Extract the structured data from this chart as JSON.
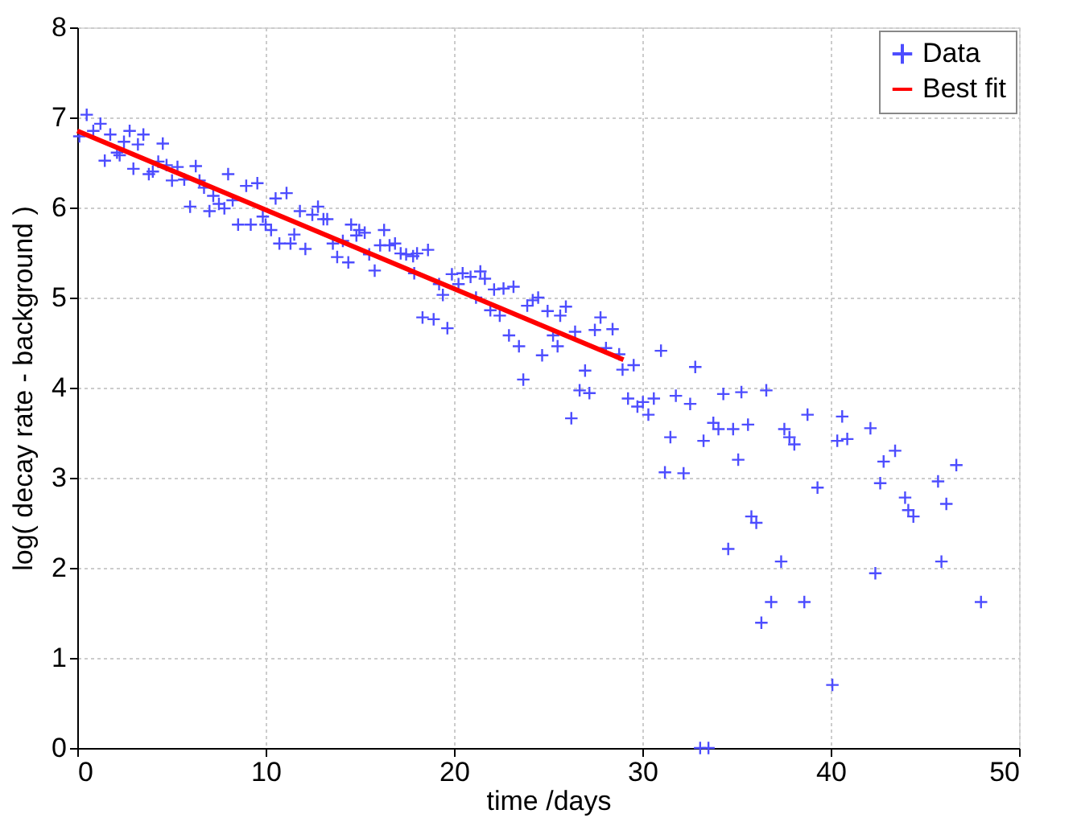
{
  "chart_data": {
    "type": "scatter",
    "xlabel": "time /days",
    "ylabel": "log( decay rate - background )",
    "xlim": [
      0,
      50
    ],
    "xticks": [
      0,
      10,
      20,
      30,
      40,
      50
    ],
    "ylim": [
      0,
      8
    ],
    "yticks": [
      0,
      1,
      2,
      3,
      4,
      5,
      6,
      7,
      8
    ],
    "grid": true,
    "legend": "top right",
    "series": [
      {
        "name": "Data",
        "marker": "cross",
        "color": "#4d4dff",
        "x": [
          0.11,
          0.5,
          0.85,
          1.23,
          1.46,
          1.75,
          2.11,
          2.25,
          2.48,
          2.78,
          2.98,
          3.22,
          3.51,
          3.8,
          4.01,
          4.3,
          4.54,
          4.74,
          5.03,
          5.32,
          5.68,
          5.99,
          6.29,
          6.49,
          6.73,
          7.02,
          7.22,
          7.52,
          7.81,
          8.01,
          8.25,
          8.54,
          8.97,
          9.21,
          9.56,
          9.85,
          10.0,
          10.29,
          10.53,
          10.73,
          11.11,
          11.32,
          11.52,
          11.82,
          12.11,
          12.48,
          12.78,
          13.07,
          13.27,
          13.57,
          13.8,
          14.1,
          14.39,
          14.54,
          14.82,
          14.97,
          15.26,
          15.5,
          15.79,
          16.08,
          16.29,
          16.58,
          16.87,
          17.17,
          17.46,
          17.83,
          18.04,
          18.62,
          17.89,
          18.33,
          18.92,
          19.21,
          19.41,
          19.65,
          19.89,
          20.24,
          20.46,
          20.88,
          21.17,
          21.4,
          21.64,
          21.93,
          22.13,
          22.43,
          22.63,
          22.92,
          23.16,
          23.45,
          23.68,
          23.89,
          24.18,
          24.47,
          24.68,
          24.97,
          25.26,
          25.5,
          25.64,
          25.94,
          26.23,
          26.43,
          26.67,
          26.96,
          27.19,
          27.48,
          27.78,
          28.07,
          28.42,
          28.77,
          28.95,
          29.24,
          29.54,
          29.74,
          30.03,
          30.32,
          30.61,
          30.99,
          31.49,
          31.2,
          31.78,
          32.19,
          32.81,
          32.54,
          33.25,
          33.07,
          33.51,
          33.77,
          34.04,
          34.3,
          34.82,
          35.26,
          35.61,
          35.09,
          34.56,
          35.79,
          36.05,
          36.58,
          36.32,
          36.84,
          37.37,
          37.54,
          37.81,
          38.07,
          38.6,
          38.77,
          39.3,
          40.09,
          40.35,
          40.61,
          40.88,
          42.11,
          42.37,
          42.63,
          42.81,
          43.42,
          43.95,
          44.12,
          44.39,
          45.7,
          45.88,
          46.14,
          46.67,
          47.98
        ],
        "values": [
          6.79,
          7.03,
          6.85,
          6.93,
          6.52,
          6.81,
          6.61,
          6.58,
          6.73,
          6.85,
          6.43,
          6.7,
          6.81,
          6.37,
          6.4,
          6.51,
          6.71,
          6.47,
          6.3,
          6.45,
          6.31,
          6.01,
          6.46,
          6.3,
          6.22,
          5.96,
          6.13,
          6.04,
          5.99,
          6.37,
          6.08,
          5.81,
          6.24,
          5.81,
          6.27,
          5.9,
          5.81,
          5.75,
          6.1,
          5.6,
          6.16,
          5.6,
          5.7,
          5.96,
          5.54,
          5.92,
          6.01,
          5.87,
          5.87,
          5.6,
          5.45,
          5.63,
          5.39,
          5.81,
          5.69,
          5.75,
          5.72,
          5.48,
          5.3,
          5.58,
          5.75,
          5.58,
          5.6,
          5.49,
          5.48,
          5.46,
          5.49,
          5.53,
          5.27,
          4.78,
          4.76,
          5.15,
          5.03,
          4.66,
          5.26,
          5.15,
          5.27,
          5.23,
          5.0,
          5.29,
          5.21,
          4.86,
          5.09,
          4.8,
          5.1,
          4.58,
          5.12,
          4.46,
          4.09,
          4.91,
          4.97,
          5.0,
          4.36,
          4.85,
          4.58,
          4.46,
          4.8,
          4.9,
          3.66,
          4.62,
          3.97,
          4.19,
          3.94,
          4.64,
          4.78,
          4.44,
          4.65,
          4.37,
          4.2,
          3.88,
          4.25,
          3.79,
          3.84,
          3.7,
          3.88,
          4.41,
          3.45,
          3.06,
          3.91,
          3.05,
          4.23,
          3.82,
          3.41,
          0.0,
          0.0,
          3.61,
          3.54,
          3.93,
          3.54,
          3.95,
          3.59,
          3.2,
          2.21,
          2.57,
          2.5,
          3.97,
          1.39,
          1.62,
          2.07,
          3.54,
          3.45,
          3.37,
          1.62,
          3.7,
          2.89,
          0.7,
          3.41,
          3.68,
          3.43,
          3.55,
          1.94,
          2.94,
          3.18,
          3.3,
          2.78,
          2.64,
          2.57,
          2.96,
          2.07,
          2.71,
          3.14,
          1.62
        ]
      },
      {
        "name": "Best fit",
        "type": "line",
        "color": "#ff0000",
        "line_style": "solid",
        "x": [
          0,
          29.0
        ],
        "values": [
          6.85,
          4.31
        ]
      }
    ]
  }
}
